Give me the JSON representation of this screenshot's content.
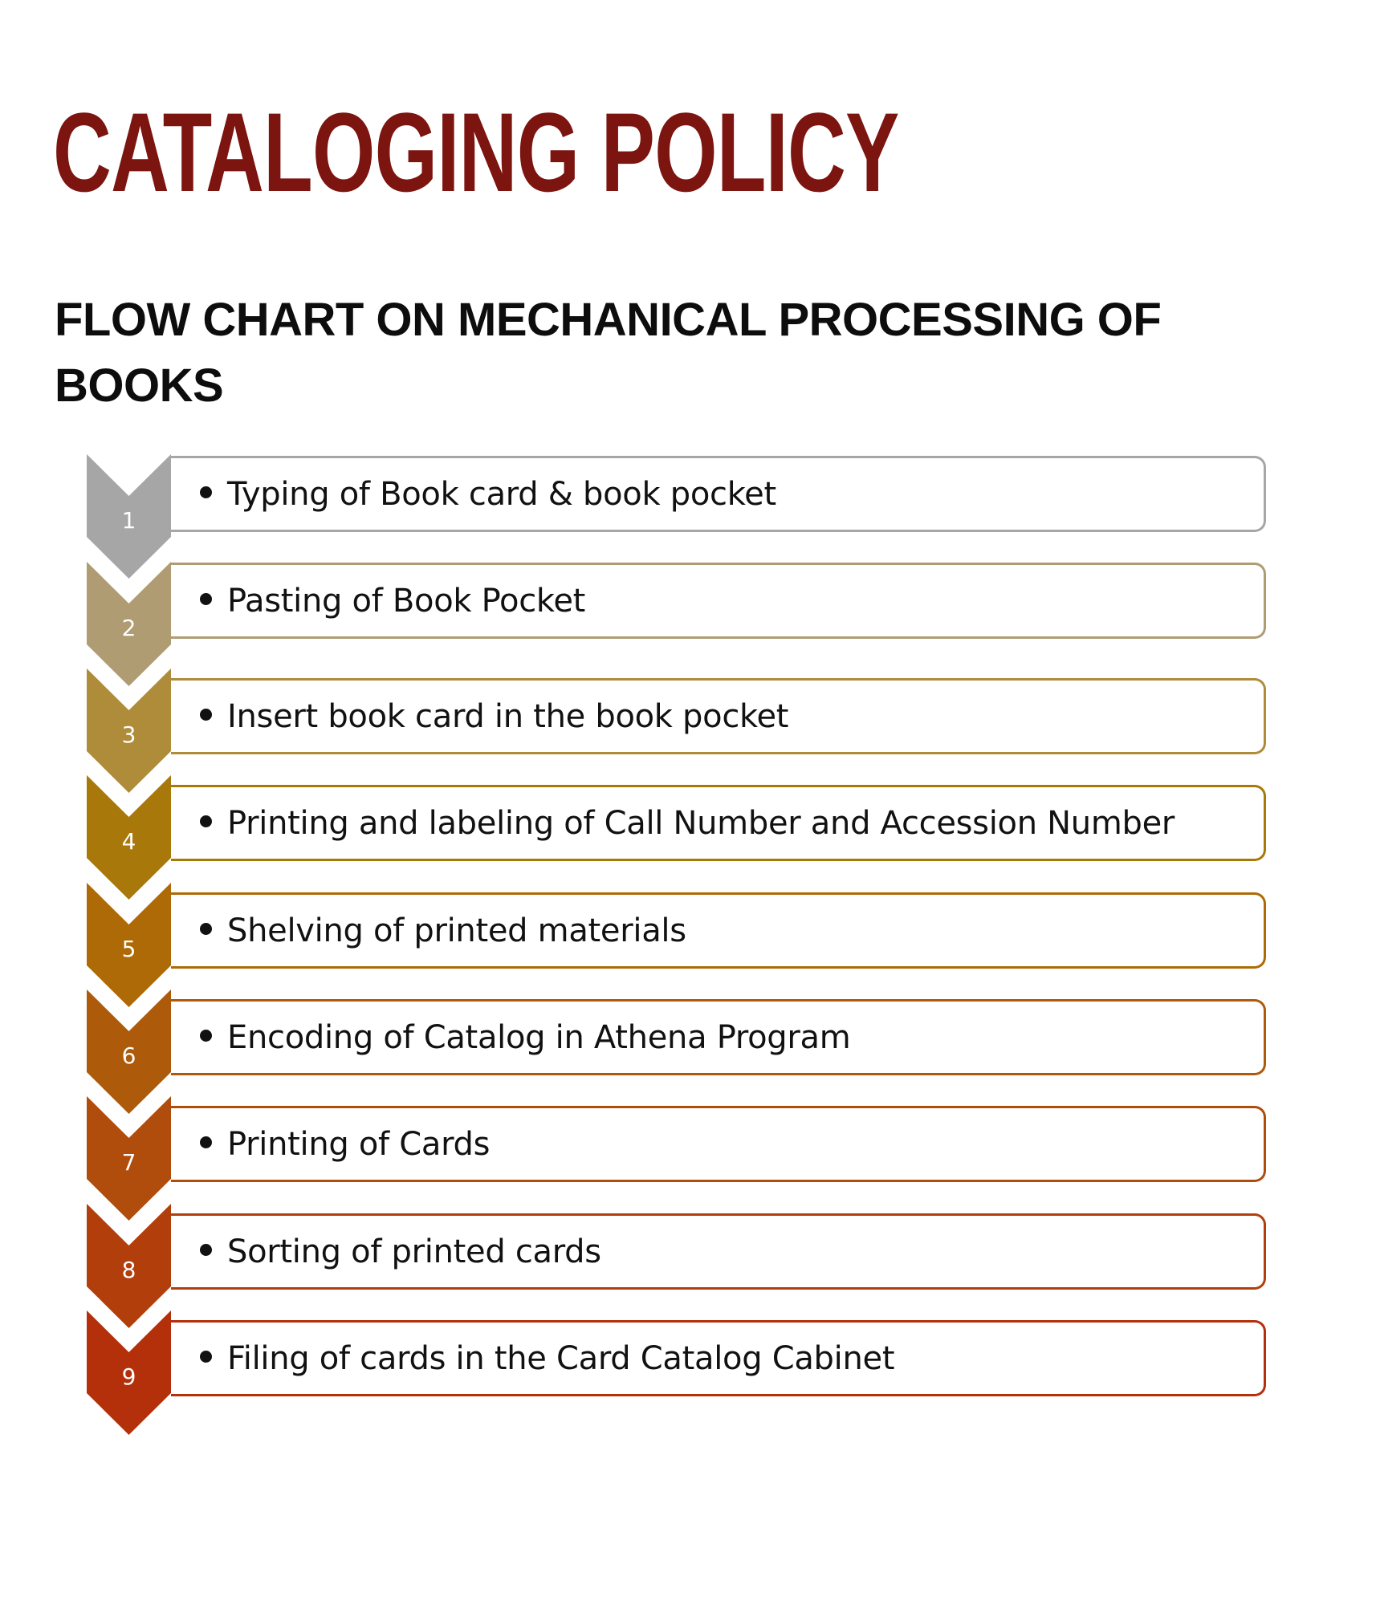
{
  "title": "CATALOGING POLICY",
  "subtitle": "FLOW CHART ON MECHANICAL PROCESSING OF BOOKS",
  "colors": {
    "title": "#7c1410",
    "subtitle": "#0d0d0d"
  },
  "steps": [
    {
      "number": "1",
      "label": "Typing of Book card & book pocket",
      "color": "#a6a6a6"
    },
    {
      "number": "2",
      "label": "Pasting of Book Pocket",
      "color": "#b09c73"
    },
    {
      "number": "3",
      "label": "Insert book card in the book pocket",
      "color": "#ae8c3a"
    },
    {
      "number": "4",
      "label": "Printing and labeling of Call Number and Accession Number",
      "color": "#a8780a"
    },
    {
      "number": "5",
      "label": "Shelving of printed materials",
      "color": "#ad6a06"
    },
    {
      "number": "6",
      "label": "Encoding of Catalog in Athena Program",
      "color": "#ad5a0a"
    },
    {
      "number": "7",
      "label": "Printing of Cards",
      "color": "#b04c0c"
    },
    {
      "number": "8",
      "label": "Sorting of printed cards",
      "color": "#b23e0c"
    },
    {
      "number": "9",
      "label": "Filing of cards in the Card Catalog Cabinet",
      "color": "#b3300b"
    }
  ]
}
